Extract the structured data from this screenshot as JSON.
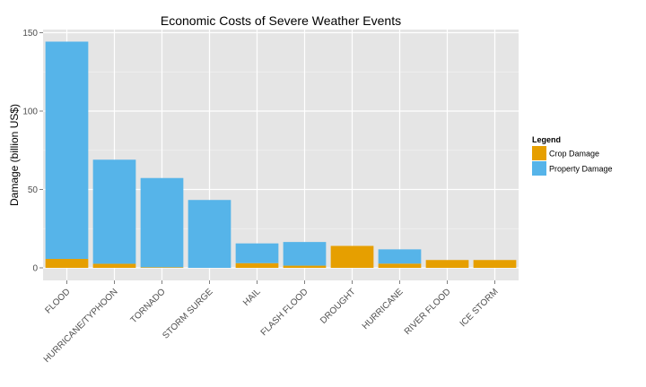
{
  "chart_data": {
    "type": "bar",
    "stacked": true,
    "title": "Economic Costs of Severe Weather Events",
    "xlabel": "",
    "ylabel": "Damage (billion US$)",
    "ylim": [
      -8,
      152
    ],
    "yticks": [
      0,
      50,
      100,
      150
    ],
    "grid": true,
    "legend_title": "Legend",
    "legend_position": "right",
    "categories": [
      "FLOOD",
      "HURRICANE/TYPHOON",
      "TORNADO",
      "STORM SURGE",
      "HAIL",
      "FLASH FLOOD",
      "DROUGHT",
      "HURRICANE",
      "RIVER FLOOD",
      "ICE STORM"
    ],
    "series": [
      {
        "name": "Crop Damage",
        "color": "#E69F00",
        "values": [
          5.7,
          2.6,
          0.4,
          0.0,
          3.0,
          1.4,
          14.0,
          2.7,
          5.0,
          5.0
        ]
      },
      {
        "name": "Property Damage",
        "color": "#56B4E9",
        "values": [
          138.6,
          66.4,
          56.9,
          43.3,
          12.6,
          15.1,
          0.0,
          9.1,
          0.0,
          0.0
        ]
      }
    ]
  }
}
